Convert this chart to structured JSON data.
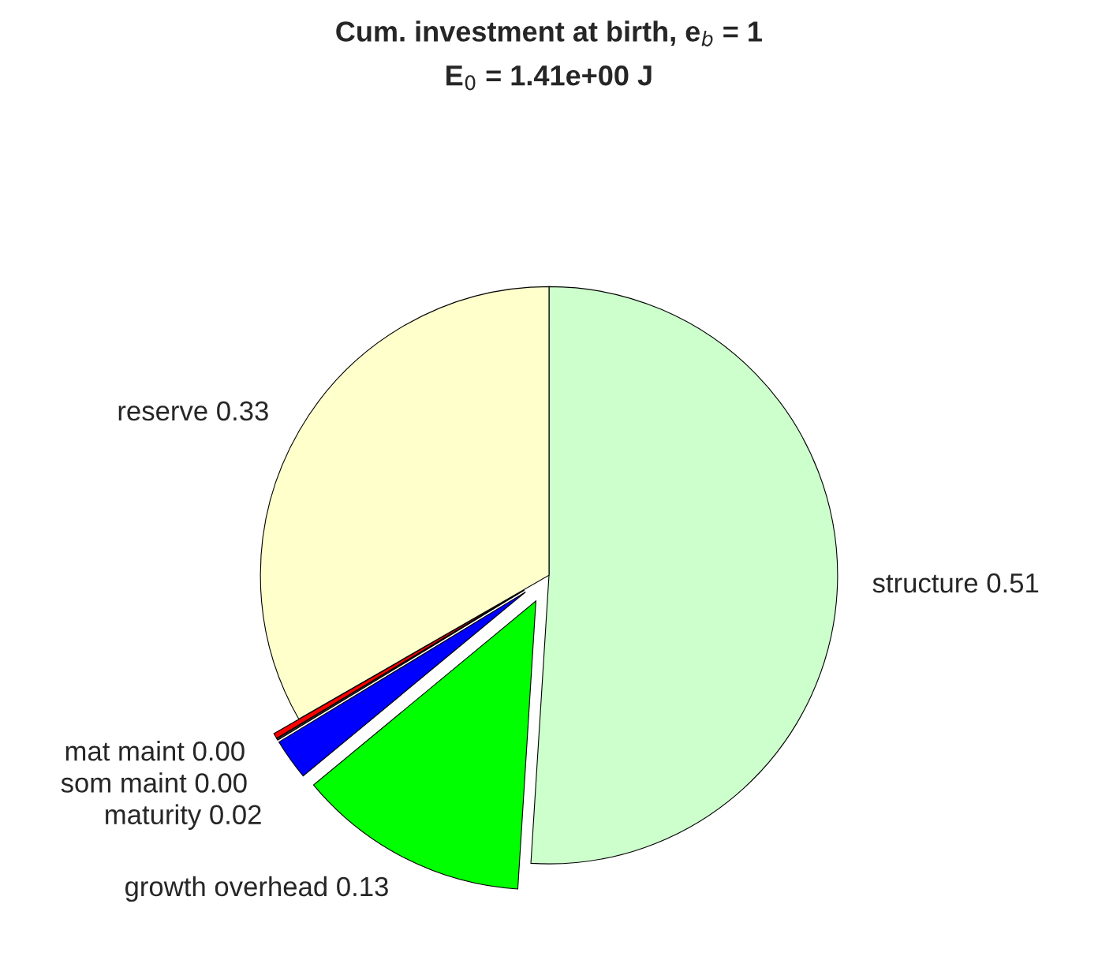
{
  "chart_data": {
    "type": "pie",
    "title": "Cum. investment at birth, e$_{b}$ = 1",
    "subtitle": "E$_{0}$ = 1.41e+00 J",
    "categories": [
      "structure",
      "growth overhead",
      "maturity",
      "som maint",
      "mat maint",
      "reserve"
    ],
    "values": [
      0.51,
      0.13,
      0.023,
      0.001,
      0.003,
      0.333
    ],
    "value_labels": [
      "0.51",
      "0.13",
      "0.02",
      "0.00",
      "0.00",
      "0.33"
    ],
    "colors": [
      "#ccffcc",
      "#00ff00",
      "#0000ff",
      "#333333",
      "#ff0000",
      "#ffffcc"
    ],
    "legend": false
  }
}
